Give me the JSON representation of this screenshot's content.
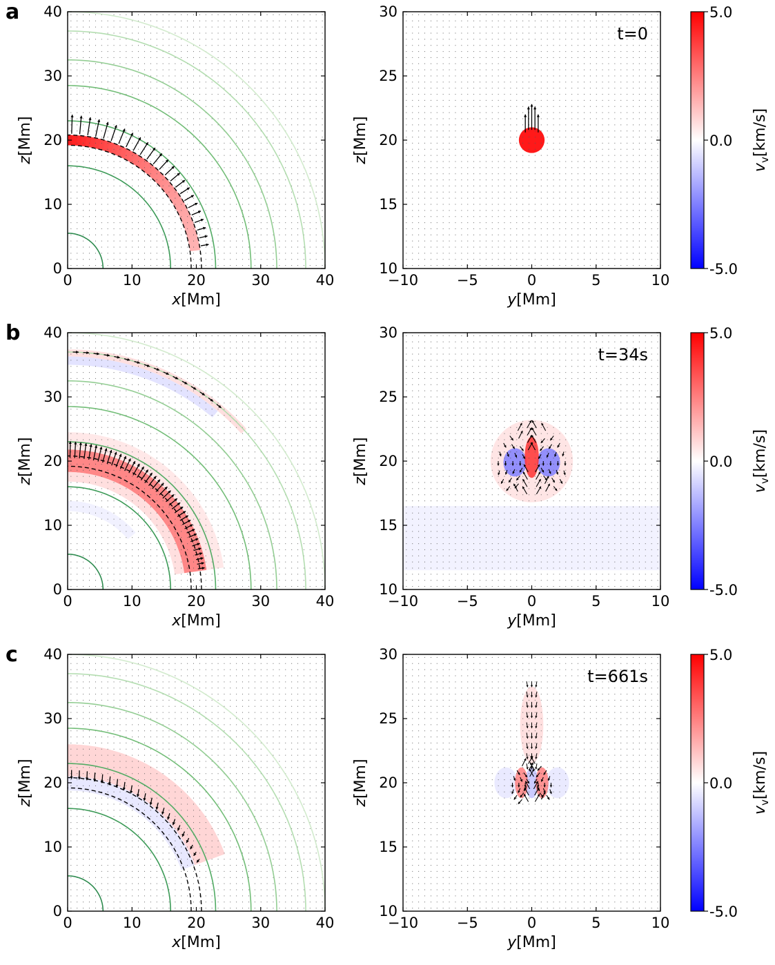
{
  "chart_data": [
    {
      "panel": "a",
      "time_label": "t=0",
      "left": {
        "type": "heatmap",
        "xlabel_var": "x",
        "xlabel_unit": "[Mm]",
        "ylabel_var": "z",
        "ylabel_unit": "[Mm]",
        "xlim": [
          0,
          40
        ],
        "ylim": [
          0,
          40
        ],
        "xticks": [
          0,
          10,
          20,
          30,
          40
        ],
        "yticks": [
          0,
          10,
          20,
          30,
          40
        ],
        "field_line_radii": [
          5.5,
          16,
          23,
          28.5,
          32.5,
          37,
          40
        ],
        "dashed_radii": [
          19.2,
          20.8
        ],
        "arc": {
          "r0": 19.2,
          "r1": 20.8,
          "angle_min_deg": 8,
          "angle_max_deg": 90,
          "vmax_top": 4.5,
          "vmax_bottom": 1.5
        },
        "arrows_on_arc": {
          "r": 21,
          "angle_min_deg": 8,
          "angle_max_deg": 90,
          "count": 24,
          "length_mm": 3.0,
          "direction": "outward"
        }
      },
      "right": {
        "type": "heatmap",
        "xlabel_var": "y",
        "xlabel_unit": "[Mm]",
        "ylabel_var": "z",
        "ylabel_unit": "[Mm]",
        "xlim": [
          -10,
          10
        ],
        "ylim": [
          10,
          30
        ],
        "xticks": [
          -10,
          -5,
          0,
          5,
          10
        ],
        "yticks": [
          10,
          15,
          20,
          25,
          30
        ],
        "blob": {
          "y": 0,
          "z": 20,
          "radius": 1.0,
          "value": 4.5
        },
        "arrows": [
          [
            -0.25,
            20.8,
            0,
            1.8
          ],
          [
            0,
            20.8,
            0,
            2.0
          ],
          [
            0.25,
            20.8,
            0,
            1.8
          ],
          [
            -0.5,
            20.6,
            0,
            1.4
          ],
          [
            0.5,
            20.6,
            0,
            1.4
          ]
        ]
      }
    },
    {
      "panel": "b",
      "time_label": "t=34s",
      "left": {
        "type": "heatmap",
        "xlabel_var": "x",
        "xlabel_unit": "[Mm]",
        "ylabel_var": "z",
        "ylabel_unit": "[Mm]",
        "xlim": [
          0,
          40
        ],
        "ylim": [
          0,
          40
        ],
        "xticks": [
          0,
          10,
          20,
          30,
          40
        ],
        "yticks": [
          0,
          10,
          20,
          30,
          40
        ],
        "field_line_radii": [
          5.5,
          16,
          23,
          28.5,
          32.5,
          37,
          40
        ],
        "dashed_radii": [
          19.2,
          20.8
        ],
        "bands": [
          {
            "r0": 18.3,
            "r1": 21.8,
            "angle_min_deg": 8,
            "angle_max_deg": 90,
            "v": 2.6
          },
          {
            "r0": 16.8,
            "r1": 18.3,
            "angle_min_deg": 8,
            "angle_max_deg": 90,
            "v": 0.7
          },
          {
            "r0": 21.8,
            "r1": 24.5,
            "angle_min_deg": 8,
            "angle_max_deg": 90,
            "v": 0.5
          },
          {
            "r0": 36.3,
            "r1": 37.4,
            "angle_min_deg": 42,
            "angle_max_deg": 90,
            "v": 0.7
          },
          {
            "r0": 35.0,
            "r1": 36.3,
            "angle_min_deg": 50,
            "angle_max_deg": 90,
            "v": -0.6
          },
          {
            "r0": 12.2,
            "r1": 13.8,
            "angle_min_deg": 40,
            "angle_max_deg": 90,
            "v": -0.3
          }
        ],
        "arrows_on_arc": {
          "r": 20.5,
          "angle_min_deg": 8,
          "angle_max_deg": 90,
          "count": 40,
          "length_mm": 2.6,
          "direction": "outward"
        },
        "arrows_outer": {
          "r": 37.0,
          "angle_min_deg": 50,
          "angle_max_deg": 90,
          "count": 16,
          "length_mm": 0.9,
          "direction": "tangential"
        }
      },
      "right": {
        "type": "heatmap",
        "xlabel_var": "y",
        "xlabel_unit": "[Mm]",
        "ylabel_var": "z",
        "ylabel_unit": "[Mm]",
        "xlim": [
          -10,
          10
        ],
        "ylim": [
          10,
          30
        ],
        "xticks": [
          -10,
          -5,
          0,
          5,
          10
        ],
        "yticks": [
          10,
          15,
          20,
          25,
          30
        ],
        "features": [
          {
            "y": 0,
            "z": 20.3,
            "sy": 0.55,
            "sz": 1.6,
            "v": 4.0
          },
          {
            "y": -1.3,
            "z": 19.9,
            "sy": 0.9,
            "sz": 1.1,
            "v": -2.5
          },
          {
            "y": 1.3,
            "z": 19.9,
            "sy": 0.9,
            "sz": 1.1,
            "v": -2.5
          },
          {
            "y": 0,
            "z": 20,
            "sy": 3.2,
            "sz": 3.2,
            "v": 0.6
          }
        ],
        "horizontal_band": {
          "z0": 11.5,
          "z1": 16.5,
          "v": -0.5
        },
        "vortex": {
          "y": 0,
          "z": 20,
          "radius": 2.6,
          "inner_radius": 0.9,
          "count_rings": 4
        }
      }
    },
    {
      "panel": "c",
      "time_label": "t=661s",
      "left": {
        "type": "heatmap",
        "xlabel_var": "x",
        "xlabel_unit": "[Mm]",
        "ylabel_var": "z",
        "ylabel_unit": "[Mm]",
        "xlim": [
          0,
          40
        ],
        "ylim": [
          0,
          40
        ],
        "xticks": [
          0,
          10,
          20,
          30,
          40
        ],
        "yticks": [
          0,
          10,
          20,
          30,
          40
        ],
        "field_line_radii": [
          5.5,
          16,
          23,
          28.5,
          32.5,
          37,
          40
        ],
        "dashed_radii": [
          19.2,
          20.8
        ],
        "bands": [
          {
            "r0": 21.0,
            "r1": 26.0,
            "angle_min_deg": 20,
            "angle_max_deg": 90,
            "v": 0.9
          },
          {
            "r0": 18.8,
            "r1": 21.0,
            "angle_min_deg": 20,
            "angle_max_deg": 90,
            "v": -0.5
          }
        ],
        "arrows_on_arc": {
          "r": 22.0,
          "angle_min_deg": 20,
          "angle_max_deg": 90,
          "count": 22,
          "length_mm": 1.4,
          "direction": "inward"
        }
      },
      "right": {
        "type": "heatmap",
        "xlabel_var": "y",
        "xlabel_unit": "[Mm]",
        "ylabel_var": "z",
        "ylabel_unit": "[Mm]",
        "xlim": [
          -10,
          10
        ],
        "ylim": [
          10,
          30
        ],
        "xticks": [
          -10,
          -5,
          0,
          5,
          10
        ],
        "yticks": [
          10,
          15,
          20,
          25,
          30
        ],
        "features": [
          {
            "y": -0.8,
            "z": 20,
            "sy": 0.5,
            "sz": 1.2,
            "v": 2.5
          },
          {
            "y": 0.8,
            "z": 20,
            "sy": 0.5,
            "sz": 1.2,
            "v": 2.5
          },
          {
            "y": 0,
            "z": 20,
            "sy": 0.5,
            "sz": 1.2,
            "v": -1.2
          },
          {
            "y": -2.0,
            "z": 20,
            "sy": 0.9,
            "sz": 1.2,
            "v": -0.5
          },
          {
            "y": 2.0,
            "z": 20,
            "sy": 0.9,
            "sz": 1.2,
            "v": -0.5
          },
          {
            "y": 0,
            "z": 24.5,
            "sy": 0.9,
            "sz": 3.0,
            "v": 0.7
          }
        ],
        "vortex": {
          "y": 0,
          "z": 20,
          "radius": 1.5,
          "inner_radius": 0.5,
          "count_rings": 3
        },
        "column_arrows": {
          "y": 0,
          "z0": 21.5,
          "z1": 28,
          "direction": "down"
        }
      }
    }
  ],
  "colorbar": {
    "label_var": "v",
    "label_sub": "v",
    "label_unit": "[km/s]",
    "vmin": -5.0,
    "vmax": 5.0,
    "ticks": [
      "5.0",
      "0.0",
      "-5.0"
    ],
    "colors": {
      "low": "#0000ff",
      "mid": "#ffffff",
      "high": "#ff0000"
    }
  },
  "colors": {
    "field_line_dark": "#2e8b4f",
    "field_line_light": "#bfe3bf",
    "dashed": "#000000",
    "arrow": "#000000"
  }
}
